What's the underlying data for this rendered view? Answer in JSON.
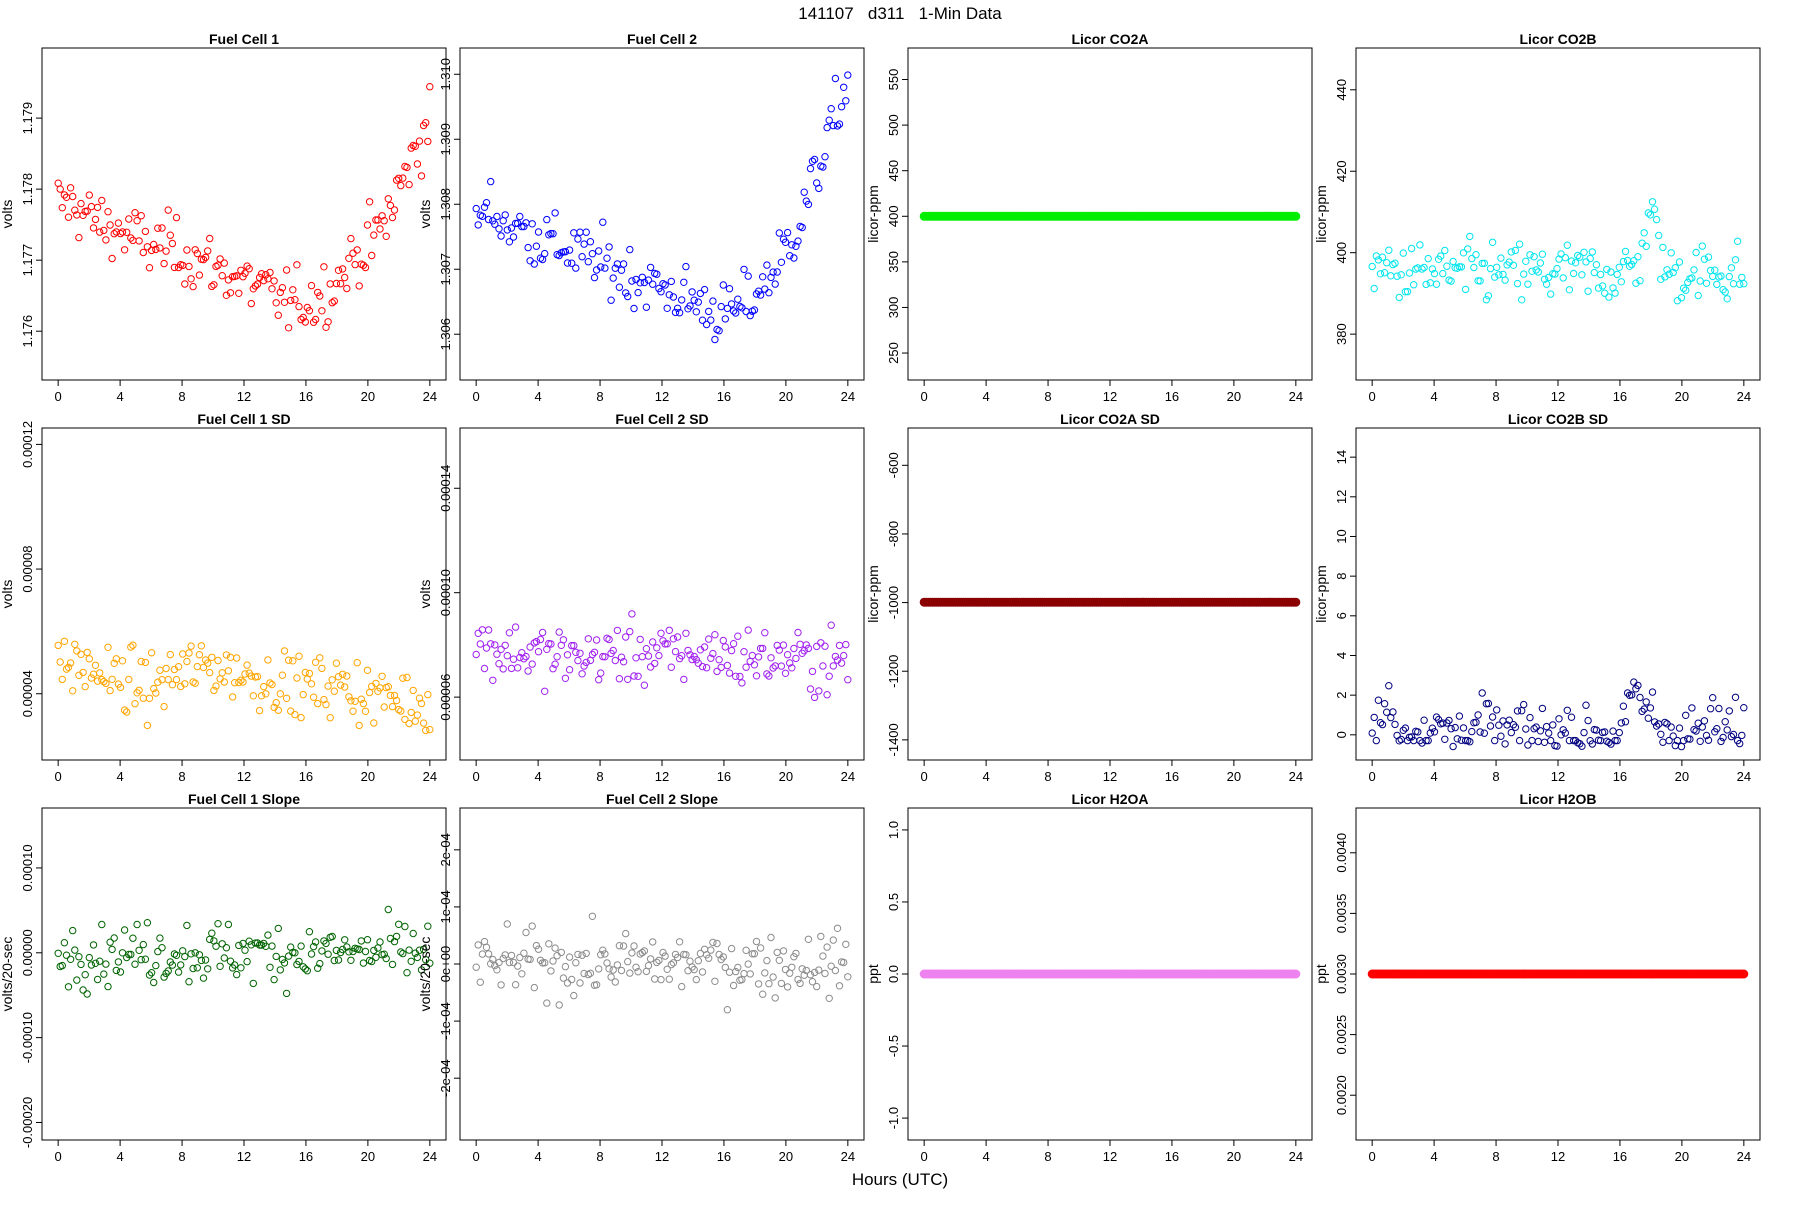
{
  "figure": {
    "title": "141107   d311   1-Min Data",
    "xlabel": "Hours (UTC)"
  },
  "chart_data": [
    {
      "type": "scatter",
      "title": "Fuel Cell 1",
      "ylabel": "volts",
      "color": "#ff0000",
      "xlim": [
        0,
        24
      ],
      "xticks": [
        0,
        4,
        8,
        12,
        16,
        20,
        24
      ],
      "xtick_labels": [
        "0",
        "4",
        "8",
        "12",
        "16",
        "20",
        "24"
      ],
      "ylim": [
        1.1755,
        1.1798
      ],
      "yticks": [
        1.176,
        1.177,
        1.178,
        1.179
      ],
      "ytick_labels": [
        "1.176",
        "1.177",
        "1.178",
        "1.179"
      ],
      "x": [
        0,
        1,
        2,
        3,
        4,
        5,
        6,
        7,
        8,
        9,
        10,
        11,
        12,
        13,
        14,
        15,
        16,
        17,
        18,
        19,
        20,
        21,
        22,
        23,
        24
      ],
      "y": [
        1.1778,
        1.1778,
        1.1776,
        1.1775,
        1.1774,
        1.1773,
        1.1772,
        1.1772,
        1.1771,
        1.177,
        1.1769,
        1.1768,
        1.1767,
        1.1766,
        1.1765,
        1.1764,
        1.1764,
        1.1765,
        1.1767,
        1.177,
        1.1772,
        1.1775,
        1.178,
        1.1785,
        1.179
      ]
    },
    {
      "type": "scatter",
      "title": "Fuel Cell 2",
      "ylabel": "volts",
      "color": "#0000ff",
      "xlim": [
        0,
        24
      ],
      "xticks": [
        0,
        4,
        8,
        12,
        16,
        20,
        24
      ],
      "xtick_labels": [
        "0",
        "4",
        "8",
        "12",
        "16",
        "20",
        "24"
      ],
      "ylim": [
        1.3055,
        1.3102
      ],
      "yticks": [
        1.306,
        1.307,
        1.308,
        1.309,
        1.31
      ],
      "ytick_labels": [
        "1.306",
        "1.307",
        "1.308",
        "1.309",
        "1.310"
      ],
      "x": [
        0,
        1,
        2,
        3,
        4,
        5,
        6,
        7,
        8,
        9,
        10,
        11,
        12,
        13,
        14,
        15,
        16,
        17,
        18,
        19,
        20,
        21,
        22,
        23,
        24
      ],
      "y": [
        1.3078,
        1.3079,
        1.3077,
        1.3076,
        1.3075,
        1.3074,
        1.3073,
        1.3072,
        1.3071,
        1.307,
        1.3069,
        1.3068,
        1.3067,
        1.3066,
        1.3065,
        1.3064,
        1.3063,
        1.3064,
        1.3066,
        1.3069,
        1.3073,
        1.3078,
        1.3085,
        1.3092,
        1.3099
      ]
    },
    {
      "type": "scatter",
      "title": "Licor CO2A",
      "ylabel": "licor-ppm",
      "color": "#00ee00",
      "xlim": [
        0,
        24
      ],
      "xticks": [
        0,
        4,
        8,
        12,
        16,
        20,
        24
      ],
      "xtick_labels": [
        "0",
        "4",
        "8",
        "12",
        "16",
        "20",
        "24"
      ],
      "ylim": [
        235,
        570
      ],
      "yticks": [
        250,
        300,
        350,
        400,
        450,
        500,
        550
      ],
      "ytick_labels": [
        "250",
        "300",
        "350",
        "400",
        "450",
        "500",
        "550"
      ],
      "x": [
        0,
        24
      ],
      "y": [
        400,
        400
      ]
    },
    {
      "type": "scatter",
      "title": "Licor CO2B",
      "ylabel": "licor-ppm",
      "color": "#00e5ee",
      "xlim": [
        0,
        24
      ],
      "xticks": [
        0,
        4,
        8,
        12,
        16,
        20,
        24
      ],
      "xtick_labels": [
        "0",
        "4",
        "8",
        "12",
        "16",
        "20",
        "24"
      ],
      "ylim": [
        372,
        447
      ],
      "yticks": [
        380,
        400,
        420,
        440
      ],
      "ytick_labels": [
        "380",
        "400",
        "420",
        "440"
      ],
      "x": [
        0,
        1,
        2,
        3,
        4,
        5,
        6,
        7,
        8,
        9,
        10,
        11,
        12,
        13,
        14,
        15,
        16,
        17,
        18,
        19,
        20,
        21,
        22,
        23,
        24
      ],
      "y": [
        395,
        396,
        395,
        395,
        395,
        395,
        395,
        395,
        395,
        395,
        395,
        395,
        395,
        395,
        395,
        395,
        395,
        396,
        410,
        395,
        395,
        395,
        395,
        395,
        395
      ]
    },
    {
      "type": "scatter",
      "title": "Fuel Cell 1 SD",
      "ylabel": "volts",
      "color": "#ffa500",
      "xlim": [
        0,
        24
      ],
      "xticks": [
        0,
        4,
        8,
        12,
        16,
        20,
        24
      ],
      "xtick_labels": [
        "0",
        "4",
        "8",
        "12",
        "16",
        "20",
        "24"
      ],
      "ylim": [
        2.3e-05,
        0.000121
      ],
      "yticks": [
        4e-05,
        8e-05,
        0.00012
      ],
      "ytick_labels": [
        "0.00004",
        "0.00008",
        "0.00012"
      ],
      "x": [
        0,
        2,
        4,
        6,
        8,
        10,
        12,
        14,
        16,
        18,
        20,
        22,
        24
      ],
      "y": [
        5e-05,
        4.8e-05,
        4.4e-05,
        4.2e-05,
        4.7e-05,
        4.9e-05,
        4.6e-05,
        4.4e-05,
        4.2e-05,
        4.3e-05,
        4e-05,
        3.8e-05,
        3.7e-05
      ]
    },
    {
      "type": "scatter",
      "title": "Fuel Cell 2 SD",
      "ylabel": "volts",
      "color": "#a020f0",
      "xlim": [
        0,
        24
      ],
      "xticks": [
        0,
        4,
        8,
        12,
        16,
        20,
        24
      ],
      "xtick_labels": [
        "0",
        "4",
        "8",
        "12",
        "16",
        "20",
        "24"
      ],
      "ylim": [
        4.1e-05,
        0.000158
      ],
      "yticks": [
        6e-05,
        0.0001,
        0.00014
      ],
      "ytick_labels": [
        "0.00006",
        "0.00010",
        "0.00014"
      ],
      "x": [
        0,
        2,
        4,
        6,
        8,
        10,
        12,
        14,
        16,
        18,
        20,
        22,
        24
      ],
      "y": [
        8e-05,
        7.8e-05,
        7.6e-05,
        7.5e-05,
        7.6e-05,
        7.7e-05,
        7.6e-05,
        7.7e-05,
        7.6e-05,
        7.5e-05,
        7.5e-05,
        7.4e-05,
        7.4e-05
      ]
    },
    {
      "type": "scatter",
      "title": "Licor CO2A SD",
      "ylabel": "licor-ppm",
      "color": "#8b0000",
      "xlim": [
        0,
        24
      ],
      "xticks": [
        0,
        4,
        8,
        12,
        16,
        20,
        24
      ],
      "xtick_labels": [
        "0",
        "4",
        "8",
        "12",
        "16",
        "20",
        "24"
      ],
      "ylim": [
        -1420,
        -530
      ],
      "yticks": [
        -1400,
        -1200,
        -1000,
        -800,
        -600
      ],
      "ytick_labels": [
        "-1400",
        "-1200",
        "-1000",
        "-800",
        "-600"
      ],
      "x": [
        0,
        24
      ],
      "y": [
        -999,
        -999
      ]
    },
    {
      "type": "scatter",
      "title": "Licor CO2B SD",
      "ylabel": "licor-ppm",
      "color": "#000080",
      "xlim": [
        0,
        24
      ],
      "xticks": [
        0,
        4,
        8,
        12,
        16,
        20,
        24
      ],
      "xtick_labels": [
        "0",
        "4",
        "8",
        "12",
        "16",
        "20",
        "24"
      ],
      "ylim": [
        -0.6,
        14.8
      ],
      "yticks": [
        0,
        2,
        4,
        6,
        8,
        10,
        12,
        14
      ],
      "ytick_labels": [
        "0",
        "2",
        "4",
        "6",
        "8",
        "10",
        "12",
        "14"
      ],
      "x": [
        0,
        1,
        2,
        3,
        4,
        5,
        6,
        7,
        8,
        9,
        10,
        11,
        12,
        13,
        14,
        15,
        16,
        17,
        18,
        19,
        20,
        21,
        22,
        23,
        24
      ],
      "y": [
        0.1,
        1.5,
        0.1,
        0.1,
        0.3,
        0.1,
        0.2,
        0.5,
        0.1,
        0.1,
        0.1,
        0.1,
        0.1,
        0.1,
        0.1,
        0.1,
        0.1,
        2.0,
        1.0,
        0.1,
        0.1,
        0.1,
        0.4,
        0.1,
        0.1
      ]
    },
    {
      "type": "scatter",
      "title": "Fuel Cell 1 Slope",
      "ylabel": "volts/20-sec",
      "color": "#006400",
      "xlim": [
        0,
        24
      ],
      "xticks": [
        0,
        4,
        8,
        12,
        16,
        20,
        24
      ],
      "xtick_labels": [
        "0",
        "4",
        "8",
        "12",
        "16",
        "20",
        "24"
      ],
      "ylim": [
        -0.000205,
        0.000155
      ],
      "yticks": [
        -0.0002,
        -0.0001,
        0,
        0.0001
      ],
      "ytick_labels": [
        "-0.00020",
        "-0.00010",
        "0.00000",
        "0.00010"
      ],
      "x": [
        0,
        2,
        4,
        6,
        8,
        10,
        12,
        14,
        16,
        18,
        20,
        22,
        24
      ],
      "y": [
        0,
        0,
        0,
        0,
        0,
        0,
        0,
        0,
        0,
        0,
        0,
        0,
        0
      ]
    },
    {
      "type": "scatter",
      "title": "Fuel Cell 2 Slope",
      "ylabel": "volts/20-sec",
      "color": "#8c8c8c",
      "xlim": [
        0,
        24
      ],
      "xticks": [
        0,
        4,
        8,
        12,
        16,
        20,
        24
      ],
      "xtick_labels": [
        "0",
        "4",
        "8",
        "12",
        "16",
        "20",
        "24"
      ],
      "ylim": [
        -0.000285,
        0.00025
      ],
      "yticks": [
        -0.0002,
        -0.0001,
        0,
        0.0001,
        0.0002
      ],
      "ytick_labels": [
        "-2e-04",
        "-1e-04",
        "0e+00",
        "1e-04",
        "2e-04"
      ],
      "x": [
        0,
        2,
        4,
        6,
        8,
        10,
        12,
        14,
        16,
        18,
        20,
        22,
        24
      ],
      "y": [
        0,
        0,
        0,
        0,
        0,
        0,
        0,
        0,
        0,
        0,
        0,
        0,
        0
      ]
    },
    {
      "type": "scatter",
      "title": "Licor H2OA",
      "ylabel": "ppt",
      "color": "#ee82ee",
      "xlim": [
        0,
        24
      ],
      "xticks": [
        0,
        4,
        8,
        12,
        16,
        20,
        24
      ],
      "xtick_labels": [
        "0",
        "4",
        "8",
        "12",
        "16",
        "20",
        "24"
      ],
      "ylim": [
        -1.06,
        1.06
      ],
      "yticks": [
        -1.0,
        -0.5,
        0.0,
        0.5,
        1.0
      ],
      "ytick_labels": [
        "-1.0",
        "-0.5",
        "0.0",
        "0.5",
        "1.0"
      ],
      "x": [
        0,
        24
      ],
      "y": [
        0,
        0
      ]
    },
    {
      "type": "scatter",
      "title": "Licor H2OB",
      "ylabel": "ppt",
      "color": "#ff0000",
      "xlim": [
        0,
        24
      ],
      "xticks": [
        0,
        4,
        8,
        12,
        16,
        20,
        24
      ],
      "xtick_labels": [
        "0",
        "4",
        "8",
        "12",
        "16",
        "20",
        "24"
      ],
      "ylim": [
        0.00174,
        0.00426
      ],
      "yticks": [
        0.002,
        0.0025,
        0.003,
        0.0035,
        0.004
      ],
      "ytick_labels": [
        "0.0020",
        "0.0025",
        "0.0030",
        "0.0035",
        "0.0040"
      ],
      "x": [
        0,
        24
      ],
      "y": [
        0.003,
        0.003
      ]
    }
  ]
}
